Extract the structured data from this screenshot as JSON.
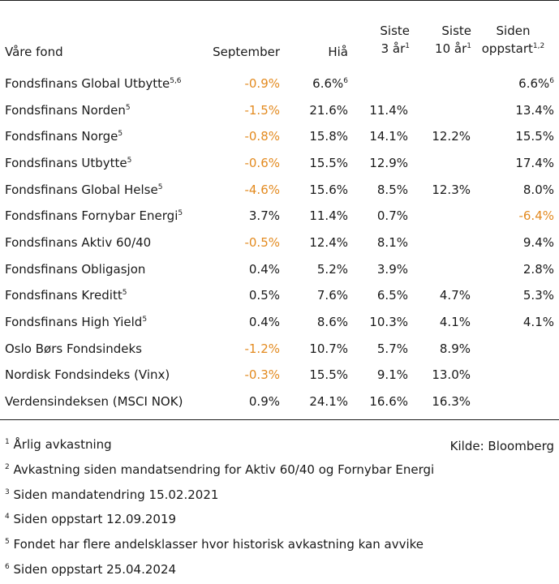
{
  "header": {
    "fund": "Våre fond",
    "september": "September",
    "hia": "Hiå",
    "siste3_line1": "Siste",
    "siste3_line2": "3 år",
    "siste3_sup": "1",
    "siste10_line1": "Siste",
    "siste10_line2": "10 år",
    "siste10_sup": "1",
    "siden_line1": "Siden",
    "siden_line2": "oppstart",
    "siden_sup": "1,2"
  },
  "rows": [
    {
      "name": "Fondsfinans Global Utbytte",
      "sup": "5,6",
      "september": "-0.9%",
      "sep_neg": true,
      "hia": "6.6%",
      "hia_sup": "6",
      "siste3": "",
      "siste10": "",
      "siden": "6.6%",
      "siden_sup": "6",
      "siden_neg": false
    },
    {
      "name": "Fondsfinans Norden",
      "sup": "5",
      "september": "-1.5%",
      "sep_neg": true,
      "hia": "21.6%",
      "hia_sup": "",
      "siste3": "11.4%",
      "siste10": "",
      "siden": "13.4%",
      "siden_sup": "",
      "siden_neg": false
    },
    {
      "name": "Fondsfinans Norge",
      "sup": "5",
      "september": "-0.8%",
      "sep_neg": true,
      "hia": "15.8%",
      "hia_sup": "",
      "siste3": "14.1%",
      "siste10": "12.2%",
      "siden": "15.5%",
      "siden_sup": "",
      "siden_neg": false
    },
    {
      "name": "Fondsfinans Utbytte",
      "sup": "5",
      "september": "-0.6%",
      "sep_neg": true,
      "hia": "15.5%",
      "hia_sup": "",
      "siste3": "12.9%",
      "siste10": "",
      "siden": "17.4%",
      "siden_sup": "",
      "siden_neg": false
    },
    {
      "name": "Fondsfinans Global Helse",
      "sup": "5",
      "september": "-4.6%",
      "sep_neg": true,
      "hia": "15.6%",
      "hia_sup": "",
      "siste3": "8.5%",
      "siste10": "12.3%",
      "siden": "8.0%",
      "siden_sup": "",
      "siden_neg": false
    },
    {
      "name": "Fondsfinans Fornybar Energi",
      "sup": "5",
      "september": "3.7%",
      "sep_neg": false,
      "hia": "11.4%",
      "hia_sup": "",
      "siste3": "0.7%",
      "siste10": "",
      "siden": "-6.4%",
      "siden_sup": "",
      "siden_neg": true
    },
    {
      "name": "Fondsfinans Aktiv 60/40",
      "sup": "",
      "september": "-0.5%",
      "sep_neg": true,
      "hia": "12.4%",
      "hia_sup": "",
      "siste3": "8.1%",
      "siste10": "",
      "siden": "9.4%",
      "siden_sup": "",
      "siden_neg": false
    },
    {
      "name": "Fondsfinans Obligasjon",
      "sup": "",
      "september": "0.4%",
      "sep_neg": false,
      "hia": "5.2%",
      "hia_sup": "",
      "siste3": "3.9%",
      "siste10": "",
      "siden": "2.8%",
      "siden_sup": "",
      "siden_neg": false
    },
    {
      "name": "Fondsfinans Kreditt",
      "sup": "5",
      "september": "0.5%",
      "sep_neg": false,
      "hia": "7.6%",
      "hia_sup": "",
      "siste3": "6.5%",
      "siste10": "4.7%",
      "siden": "5.3%",
      "siden_sup": "",
      "siden_neg": false
    },
    {
      "name": "Fondsfinans High Yield",
      "sup": "5",
      "september": "0.4%",
      "sep_neg": false,
      "hia": "8.6%",
      "hia_sup": "",
      "siste3": "10.3%",
      "siste10": "4.1%",
      "siden": "4.1%",
      "siden_sup": "",
      "siden_neg": false
    },
    {
      "name": "Oslo Børs Fondsindeks",
      "sup": "",
      "september": "-1.2%",
      "sep_neg": true,
      "hia": "10.7%",
      "hia_sup": "",
      "siste3": "5.7%",
      "siste10": "8.9%",
      "siden": "",
      "siden_sup": "",
      "siden_neg": false
    },
    {
      "name": "Nordisk Fondsindeks (Vinx)",
      "sup": "",
      "september": "-0.3%",
      "sep_neg": true,
      "hia": "15.5%",
      "hia_sup": "",
      "siste3": "9.1%",
      "siste10": "13.0%",
      "siden": "",
      "siden_sup": "",
      "siden_neg": false
    },
    {
      "name": "Verdensindeksen (MSCI NOK)",
      "sup": "",
      "september": "0.9%",
      "sep_neg": false,
      "hia": "24.1%",
      "hia_sup": "",
      "siste3": "16.6%",
      "siste10": "16.3%",
      "siden": "",
      "siden_sup": "",
      "siden_neg": false
    }
  ],
  "footnotes": [
    {
      "num": "1",
      "text": "Årlig avkastning"
    },
    {
      "num": "2",
      "text": "Avkastning siden mandatsendring for Aktiv 60/40 og Fornybar Energi"
    },
    {
      "num": "3",
      "text": "Siden mandatendring 15.02.2021"
    },
    {
      "num": "4",
      "text": "Siden oppstart 12.09.2019"
    },
    {
      "num": "5",
      "text": "Fondet har flere andelsklasser hvor historisk avkastning kan avvike"
    },
    {
      "num": "6",
      "text": "Siden oppstart 25.04.2024"
    }
  ],
  "source": "Kilde: Bloomberg",
  "colors": {
    "negative": "#e38a1f",
    "text": "#1a1a1a"
  }
}
